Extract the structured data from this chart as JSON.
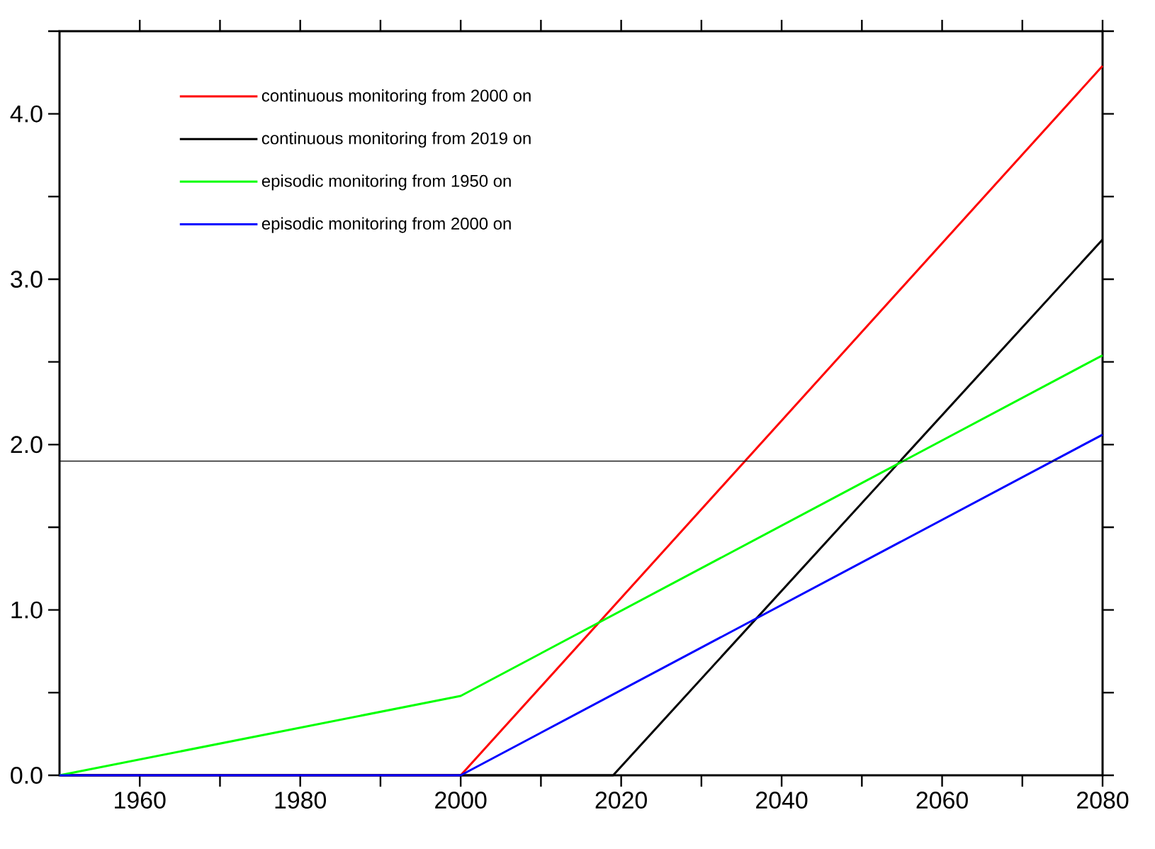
{
  "chart_data": {
    "type": "line",
    "xlim": [
      1950,
      2080
    ],
    "ylim": [
      0,
      4.5
    ],
    "xticks": [
      {
        "value": 1960,
        "label": "1960"
      },
      {
        "value": 1970,
        "label": null
      },
      {
        "value": 1980,
        "label": "1980"
      },
      {
        "value": 1990,
        "label": null
      },
      {
        "value": 2000,
        "label": "2000"
      },
      {
        "value": 2010,
        "label": null
      },
      {
        "value": 2020,
        "label": "2020"
      },
      {
        "value": 2030,
        "label": null
      },
      {
        "value": 2040,
        "label": "2040"
      },
      {
        "value": 2050,
        "label": null
      },
      {
        "value": 2060,
        "label": "2060"
      },
      {
        "value": 2070,
        "label": null
      },
      {
        "value": 2080,
        "label": "2080"
      }
    ],
    "yticks": [
      {
        "value": 0,
        "label": "0.0"
      },
      {
        "value": 0.5,
        "label": null
      },
      {
        "value": 1,
        "label": "1.0"
      },
      {
        "value": 1.5,
        "label": null
      },
      {
        "value": 2,
        "label": "2.0"
      },
      {
        "value": 2.5,
        "label": null
      },
      {
        "value": 3,
        "label": "3.0"
      },
      {
        "value": 3.5,
        "label": null
      },
      {
        "value": 4,
        "label": "4.0"
      },
      {
        "value": 4.5,
        "label": null
      }
    ],
    "legend": "top left",
    "grid": false,
    "marker": "none",
    "line_style": "solid",
    "series": [
      {
        "name": "continuous monitoring from 2000 on",
        "color": "#ff0000",
        "x": [
          1950,
          2000,
          2080
        ],
        "values": [
          0,
          0,
          4.29
        ]
      },
      {
        "name": "continuous monitoring from 2019 on",
        "color": "#000000",
        "x": [
          1950,
          2019,
          2080
        ],
        "values": [
          0,
          0,
          3.24
        ]
      },
      {
        "name": "episodic monitoring from 1950 on",
        "color": "#00ff00",
        "x": [
          1950,
          2000,
          2080
        ],
        "values": [
          0,
          0.48,
          2.54
        ]
      },
      {
        "name": "episodic monitoring from 2000 on",
        "color": "#0000ff",
        "x": [
          1950,
          2000,
          2080
        ],
        "values": [
          0,
          0,
          2.06
        ]
      }
    ],
    "ref_lines": [
      {
        "axis": "y",
        "value": 1.9,
        "color": "#000000"
      }
    ]
  }
}
